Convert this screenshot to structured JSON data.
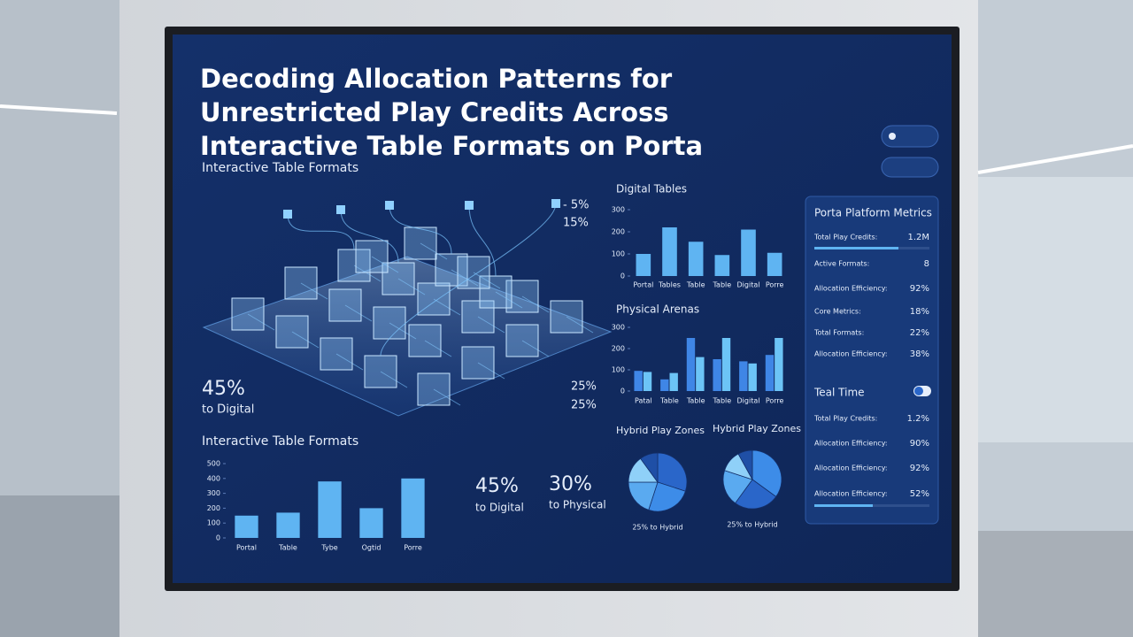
{
  "title": "Decoding Allocation Patterns for Unrestricted Play Credits Across Interactive Table Formats on Porta",
  "network": {
    "heading": "Interactive Table Formats",
    "labels": [
      "- 5%",
      "15%",
      "25%",
      "25%"
    ],
    "share": {
      "value": "45%",
      "caption": "to Digital"
    }
  },
  "digital_tables": {
    "type": "bar",
    "heading": "Digital Tables",
    "categories": [
      "Portal",
      "Tables",
      "Table",
      "Table",
      "Digital",
      "Porre"
    ],
    "values": [
      100,
      220,
      155,
      95,
      210,
      105
    ],
    "color": "#5fb4f2",
    "ylim": [
      0,
      300
    ],
    "yticks": [
      0,
      100,
      200,
      300
    ]
  },
  "physical_arenas": {
    "type": "bar",
    "heading": "Physical Arenas",
    "categories": [
      "Patal",
      "Table",
      "Table",
      "Table",
      "Digital",
      "Porre"
    ],
    "series": [
      {
        "color": "#3f86e6",
        "values": [
          95,
          55,
          250,
          150,
          140,
          170
        ]
      },
      {
        "color": "#6cc4f6",
        "values": [
          90,
          85,
          160,
          250,
          130,
          250
        ]
      }
    ],
    "ylim": [
      0,
      300
    ],
    "yticks": [
      0,
      100,
      200,
      300
    ]
  },
  "hybrid_zones": [
    {
      "type": "pie",
      "heading": "Hybrid Play Zones",
      "caption": "25% to Hybrid",
      "values": [
        30,
        25,
        20,
        15,
        10
      ],
      "colors": [
        "#2a66c9",
        "#3d8ce8",
        "#5aaaf0",
        "#8fd0f8",
        "#1f4fa6"
      ]
    },
    {
      "type": "pie",
      "heading": "Hybrid Play Zones",
      "caption": "25% to Hybrid",
      "values": [
        35,
        25,
        20,
        12,
        8
      ],
      "colors": [
        "#3d8ce8",
        "#2a66c9",
        "#5aaaf0",
        "#8fd0f8",
        "#1f4fa6"
      ]
    }
  ],
  "formats_chart": {
    "type": "bar",
    "heading": "Interactive Table Formats",
    "categories": [
      "Portal",
      "Table",
      "Tybe",
      "Ogtid",
      "Porre"
    ],
    "values": [
      150,
      170,
      380,
      200,
      400
    ],
    "color": "#5fb4f2",
    "ylim": [
      0,
      500
    ],
    "yticks": [
      0,
      100,
      200,
      300,
      400,
      500
    ]
  },
  "stats": [
    {
      "value": "45%",
      "caption": "to Digital"
    },
    {
      "value": "30%",
      "caption": "to Physical"
    }
  ],
  "metrics": {
    "heading": "Porta Platform Metrics",
    "rows": [
      {
        "label": "Total Play Credits:",
        "value": "1.2M"
      },
      {
        "label": "Active Formats:",
        "value": "8"
      },
      {
        "label": "Allocation Efficiency:",
        "value": "92%"
      },
      {
        "label": "Core Metrics:",
        "value": "18%"
      },
      {
        "label": "Total Formats:",
        "value": "22%"
      },
      {
        "label": "Allocation Efficiency:",
        "value": "38%"
      }
    ],
    "toggle": "Teal Time",
    "rows2": [
      {
        "label": "Total Play Credits:",
        "value": "1.2%"
      },
      {
        "label": "Allocation Efficiency:",
        "value": "90%"
      },
      {
        "label": "Allocation Efficiency:",
        "value": "92%"
      },
      {
        "label": "Allocation Efficiency:",
        "value": "52%"
      }
    ]
  }
}
